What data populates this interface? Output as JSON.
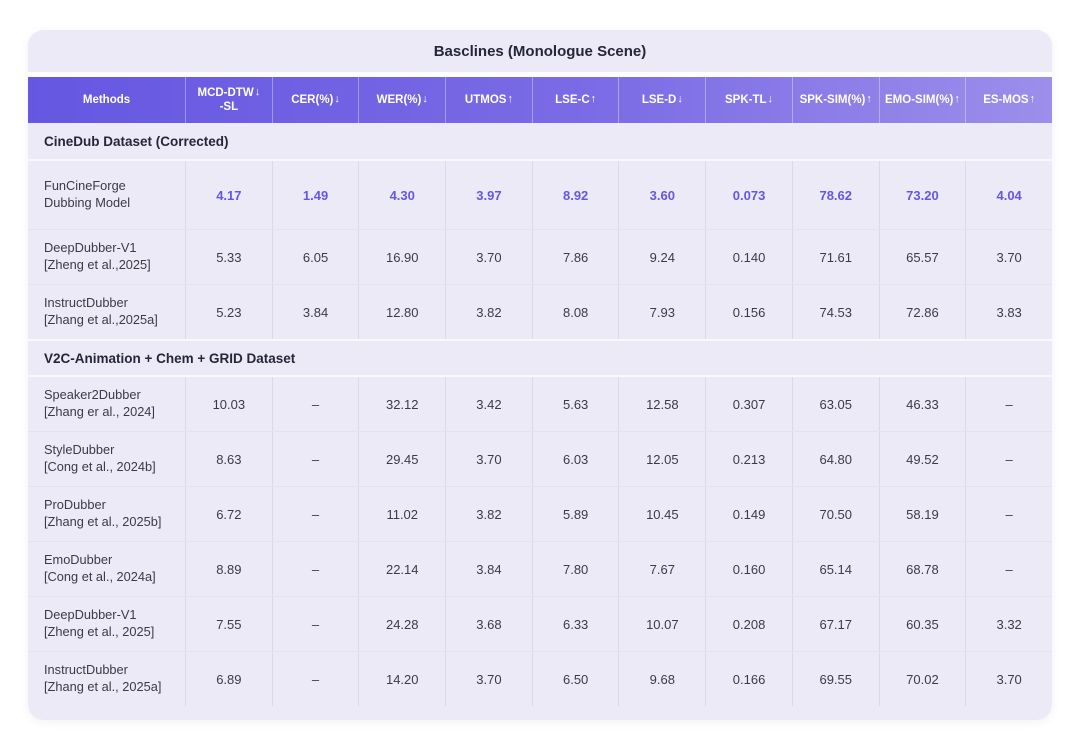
{
  "title": "Basclines (Monologue Scene)",
  "columns": [
    {
      "label": "Methods",
      "arrow": ""
    },
    {
      "label": "MCD-DTW",
      "label2": "-SL",
      "arrow": "↓"
    },
    {
      "label": "CER(%)",
      "arrow": "↓"
    },
    {
      "label": "WER(%)",
      "arrow": "↓"
    },
    {
      "label": "UTMOS",
      "arrow": "↑"
    },
    {
      "label": "LSE-C",
      "arrow": "↑"
    },
    {
      "label": "LSE-D",
      "arrow": "↓"
    },
    {
      "label": "SPK-TL",
      "arrow": "↓"
    },
    {
      "label": "SPK-SIM(%)",
      "arrow": "↑"
    },
    {
      "label": "EMO-SIM(%)",
      "arrow": "↑"
    },
    {
      "label": "ES-MOS",
      "arrow": "↑"
    }
  ],
  "sections": [
    {
      "heading": "CineDub Dataset (Corrected)",
      "rows": [
        {
          "name": "FunCineForge",
          "cite": "Dubbing Model",
          "highlight": true,
          "tall": true,
          "values": [
            "4.17",
            "1.49",
            "4.30",
            "3.97",
            "8.92",
            "3.60",
            "0.073",
            "78.62",
            "73.20",
            "4.04"
          ]
        },
        {
          "name": "DeepDubber-V1",
          "cite": "[Zheng et al.,2025]",
          "highlight": false,
          "tall": false,
          "values": [
            "5.33",
            "6.05",
            "16.90",
            "3.70",
            "7.86",
            "9.24",
            "0.140",
            "71.61",
            "65.57",
            "3.70"
          ]
        },
        {
          "name": "InstructDubber",
          "cite": "[Zhang et al.,2025a]",
          "highlight": false,
          "tall": false,
          "values": [
            "5.23",
            "3.84",
            "12.80",
            "3.82",
            "8.08",
            "7.93",
            "0.156",
            "74.53",
            "72.86",
            "3.83"
          ]
        }
      ]
    },
    {
      "heading": "V2C-Animation + Chem + GRID Dataset",
      "rows": [
        {
          "name": "Speaker2Dubber",
          "cite": "[Zhang er al., 2024]",
          "highlight": false,
          "tall": false,
          "values": [
            "10.03",
            "–",
            "32.12",
            "3.42",
            "5.63",
            "12.58",
            "0.307",
            "63.05",
            "46.33",
            "–"
          ]
        },
        {
          "name": "StyleDubber",
          "cite": "[Cong et al., 2024b]",
          "highlight": false,
          "tall": false,
          "values": [
            "8.63",
            "–",
            "29.45",
            "3.70",
            "6.03",
            "12.05",
            "0.213",
            "64.80",
            "49.52",
            "–"
          ]
        },
        {
          "name": "ProDubber",
          "cite": "[Zhang et al., 2025b]",
          "highlight": false,
          "tall": false,
          "values": [
            "6.72",
            "–",
            "11.02",
            "3.82",
            "5.89",
            "10.45",
            "0.149",
            "70.50",
            "58.19",
            "–"
          ]
        },
        {
          "name": "EmoDubber",
          "cite": "[Cong et al., 2024a]",
          "highlight": false,
          "tall": false,
          "values": [
            "8.89",
            "–",
            "22.14",
            "3.84",
            "7.80",
            "7.67",
            "0.160",
            "65.14",
            "68.78",
            "–"
          ]
        },
        {
          "name": "DeepDubber-V1",
          "cite": "[Zheng et al., 2025]",
          "highlight": false,
          "tall": false,
          "values": [
            "7.55",
            "–",
            "24.28",
            "3.68",
            "6.33",
            "10.07",
            "0.208",
            "67.17",
            "60.35",
            "3.32"
          ]
        },
        {
          "name": "InstructDubber",
          "cite": "[Zhang et al., 2025a]",
          "highlight": false,
          "tall": false,
          "values": [
            "6.89",
            "–",
            "14.20",
            "3.70",
            "6.50",
            "9.68",
            "0.166",
            "69.55",
            "70.02",
            "3.70"
          ]
        }
      ]
    }
  ],
  "colors": {
    "card_background": "#ECEAF7",
    "header_gradient_left": "#6557E1",
    "header_gradient_right": "#9C8EEA",
    "header_text": "#FFFFFF",
    "body_text": "#3B3B47",
    "highlight_text": "#6557DF"
  }
}
